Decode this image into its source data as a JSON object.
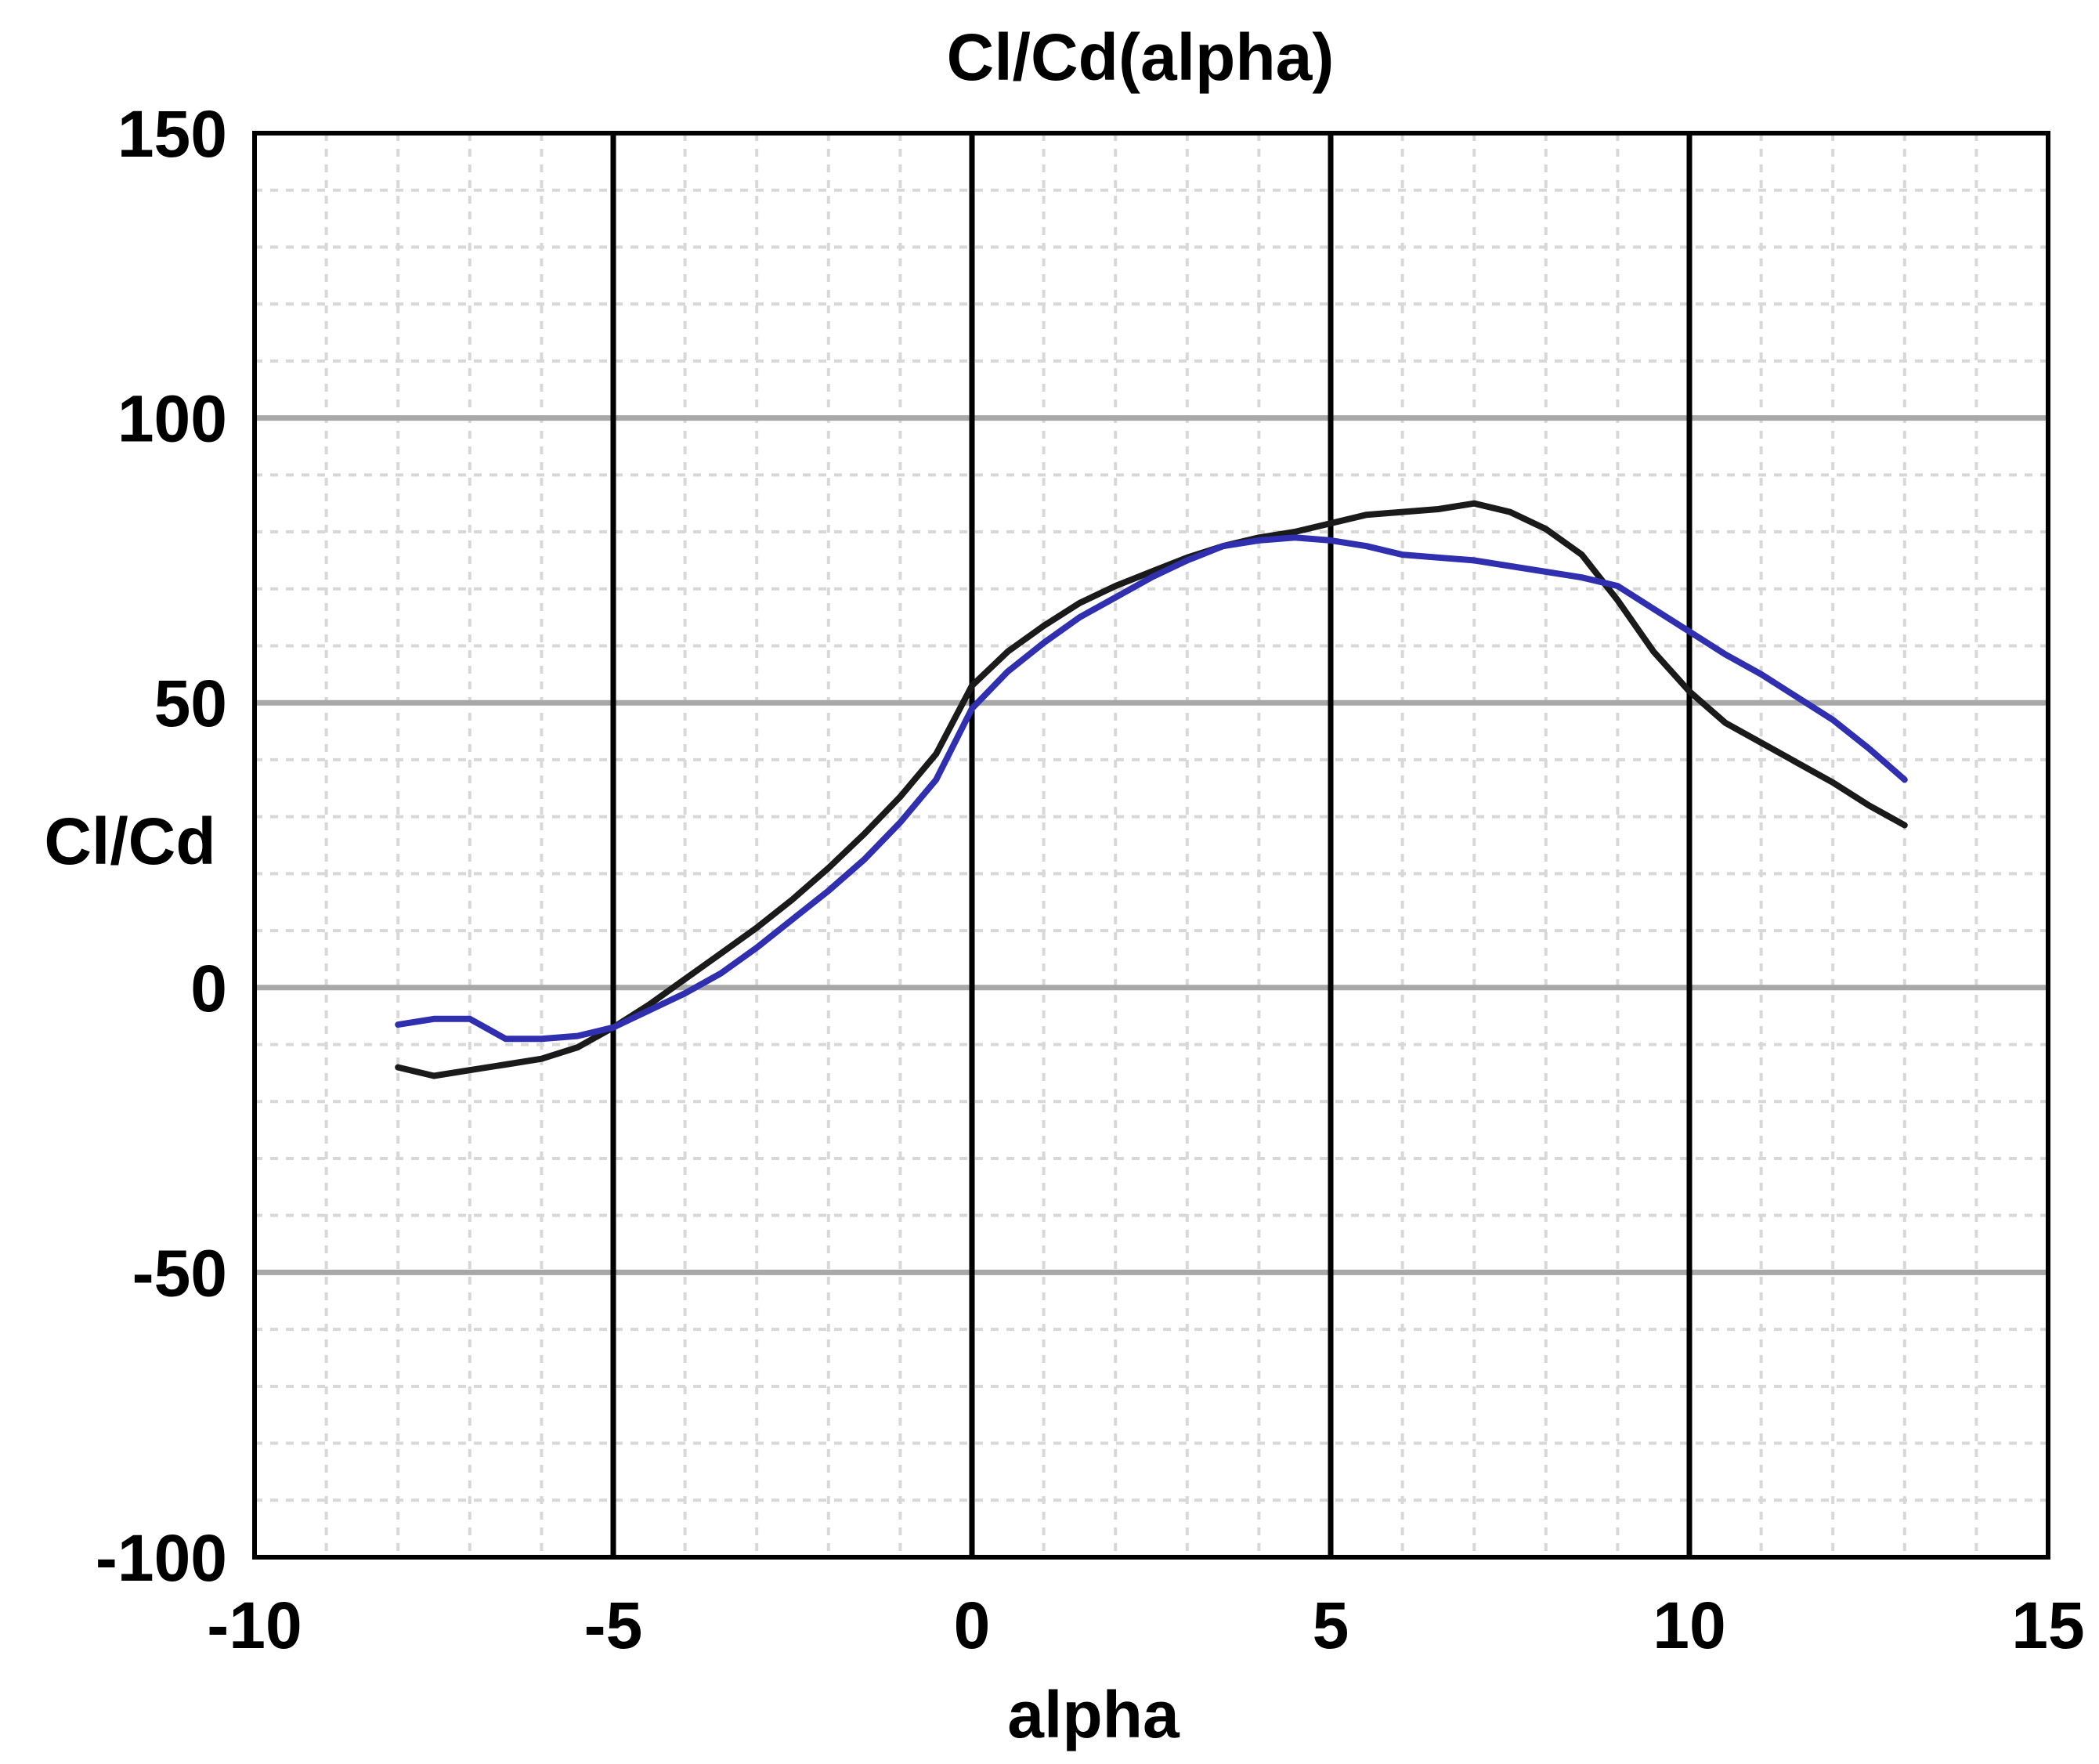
{
  "chart_data": {
    "type": "line",
    "title": "Cl/Cd(alpha)",
    "xlabel": "alpha",
    "ylabel": "Cl/Cd",
    "xlim": [
      -10,
      15
    ],
    "ylim": [
      -100,
      150
    ],
    "x_ticks": [
      -10,
      -5,
      0,
      5,
      10,
      15
    ],
    "x_tick_labels": [
      "-10",
      "-5",
      "0",
      "5",
      "10",
      "15"
    ],
    "y_ticks": [
      -100,
      -50,
      0,
      50,
      100,
      150
    ],
    "y_tick_labels": [
      "-100",
      "-50",
      "0",
      "50",
      "100",
      "150"
    ],
    "x_minor_step": 1,
    "y_minor_step": 10,
    "grid": true,
    "legend": "none",
    "colors": {
      "background": "#ffffff",
      "major_vertical_grid": "#000000",
      "major_horizontal_grid": "#a8a8a8",
      "minor_grid": "#d8d8d8",
      "frame": "#000000"
    },
    "series": [
      {
        "name": "black",
        "color": "#1a1a1a",
        "x": [
          -8,
          -7.5,
          -7,
          -6.5,
          -6,
          -5.5,
          -5,
          -4.5,
          -4,
          -3.5,
          -3,
          -2.5,
          -2,
          -1.5,
          -1,
          -0.5,
          0,
          0.5,
          1,
          1.5,
          2,
          2.5,
          3,
          3.5,
          4,
          4.5,
          5,
          5.5,
          6,
          6.5,
          7,
          7.5,
          8,
          8.5,
          9,
          9.5,
          10,
          10.5,
          11,
          11.5,
          12,
          12.5,
          13
        ],
        "y": [
          -14,
          -15.5,
          -14.5,
          -13.5,
          -12.5,
          -10.5,
          -7,
          -3,
          1.5,
          6,
          10.5,
          15.5,
          21,
          27,
          33.5,
          41,
          53,
          59,
          63.5,
          67.5,
          70.5,
          73,
          75.5,
          77.5,
          79,
          80,
          81.5,
          83,
          83.5,
          84,
          85,
          83.5,
          80.5,
          76,
          68,
          59,
          52,
          46.5,
          43,
          39.5,
          36,
          32,
          28.5
        ]
      },
      {
        "name": "blue",
        "color": "#2f2fb0",
        "x": [
          -8,
          -7.5,
          -7,
          -6.5,
          -6,
          -5.5,
          -5,
          -4.5,
          -4,
          -3.5,
          -3,
          -2.5,
          -2,
          -1.5,
          -1,
          -0.5,
          0,
          0.5,
          1,
          1.5,
          2,
          2.5,
          3,
          3.5,
          4,
          4.5,
          5,
          5.5,
          6,
          6.5,
          7,
          7.5,
          8,
          8.5,
          9,
          9.5,
          10,
          10.5,
          11,
          11.5,
          12,
          12.5,
          13
        ],
        "y": [
          -6.5,
          -5.5,
          -5.5,
          -9,
          -9,
          -8.5,
          -7,
          -4,
          -1,
          2.5,
          7,
          12,
          17,
          22.5,
          29,
          36.5,
          49,
          55.5,
          60.5,
          65,
          68.5,
          72,
          75,
          77.5,
          78.5,
          79,
          78.5,
          77.5,
          76,
          75.5,
          75,
          74,
          73,
          72,
          70.5,
          66.5,
          62.5,
          58.5,
          55,
          51,
          47,
          42,
          36.5
        ]
      }
    ]
  }
}
